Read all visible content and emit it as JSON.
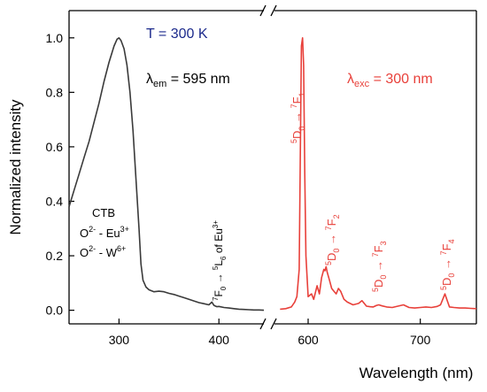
{
  "chart_data": {
    "type": "line",
    "xlabel": "Wavelength (nm)",
    "ylabel": "Normalized intensity",
    "ylim": [
      -0.05,
      1.1
    ],
    "grid": false,
    "broken_x_axis": true,
    "segments": [
      {
        "xlim": [
          250,
          445
        ],
        "ticks": [
          300,
          400
        ]
      },
      {
        "xlim": [
          570,
          750
        ],
        "ticks": [
          600,
          700
        ]
      }
    ],
    "yticks": [
      "0.0",
      "0.2",
      "0.4",
      "0.6",
      "0.8",
      "1.0"
    ],
    "xtick_labels": [
      "300",
      "400",
      "600",
      "700"
    ],
    "series": [
      {
        "role": "excitation",
        "color": "#3a3a3a",
        "segment": 0,
        "points": [
          [
            250,
            0.38
          ],
          [
            255,
            0.44
          ],
          [
            260,
            0.5
          ],
          [
            265,
            0.56
          ],
          [
            270,
            0.62
          ],
          [
            275,
            0.69
          ],
          [
            280,
            0.76
          ],
          [
            285,
            0.84
          ],
          [
            290,
            0.91
          ],
          [
            295,
            0.97
          ],
          [
            298,
            0.995
          ],
          [
            300,
            1.0
          ],
          [
            302,
            0.99
          ],
          [
            305,
            0.96
          ],
          [
            308,
            0.9
          ],
          [
            311,
            0.8
          ],
          [
            314,
            0.66
          ],
          [
            317,
            0.48
          ],
          [
            320,
            0.3
          ],
          [
            322,
            0.17
          ],
          [
            324,
            0.11
          ],
          [
            327,
            0.085
          ],
          [
            330,
            0.075
          ],
          [
            335,
            0.068
          ],
          [
            340,
            0.07
          ],
          [
            345,
            0.068
          ],
          [
            350,
            0.062
          ],
          [
            355,
            0.058
          ],
          [
            360,
            0.052
          ],
          [
            365,
            0.046
          ],
          [
            370,
            0.04
          ],
          [
            375,
            0.034
          ],
          [
            380,
            0.028
          ],
          [
            385,
            0.024
          ],
          [
            390,
            0.02
          ],
          [
            393,
            0.03
          ],
          [
            395,
            0.018
          ],
          [
            398,
            0.013
          ],
          [
            400,
            0.014
          ],
          [
            405,
            0.01
          ],
          [
            410,
            0.008
          ],
          [
            415,
            0.006
          ],
          [
            420,
            0.004
          ],
          [
            425,
            0.003
          ],
          [
            430,
            0.002
          ],
          [
            435,
            0.001
          ],
          [
            440,
            0.001
          ],
          [
            445,
            0.0
          ]
        ]
      },
      {
        "role": "emission",
        "color": "#e8403a",
        "segment": 1,
        "points": [
          [
            575,
            0.004
          ],
          [
            580,
            0.006
          ],
          [
            585,
            0.012
          ],
          [
            588,
            0.03
          ],
          [
            590,
            0.05
          ],
          [
            592,
            0.15
          ],
          [
            593,
            0.55
          ],
          [
            594,
            0.97
          ],
          [
            595,
            1.0
          ],
          [
            596,
            0.9
          ],
          [
            597,
            0.5
          ],
          [
            598,
            0.2
          ],
          [
            600,
            0.05
          ],
          [
            603,
            0.06
          ],
          [
            605,
            0.04
          ],
          [
            608,
            0.09
          ],
          [
            610,
            0.06
          ],
          [
            612,
            0.12
          ],
          [
            614,
            0.15
          ],
          [
            615,
            0.145
          ],
          [
            616,
            0.16
          ],
          [
            617,
            0.14
          ],
          [
            619,
            0.11
          ],
          [
            621,
            0.08
          ],
          [
            623,
            0.07
          ],
          [
            625,
            0.06
          ],
          [
            627,
            0.08
          ],
          [
            629,
            0.07
          ],
          [
            632,
            0.04
          ],
          [
            635,
            0.03
          ],
          [
            640,
            0.02
          ],
          [
            645,
            0.025
          ],
          [
            648,
            0.035
          ],
          [
            652,
            0.015
          ],
          [
            655,
            0.013
          ],
          [
            658,
            0.012
          ],
          [
            661,
            0.018
          ],
          [
            663,
            0.02
          ],
          [
            666,
            0.016
          ],
          [
            670,
            0.012
          ],
          [
            675,
            0.01
          ],
          [
            680,
            0.015
          ],
          [
            685,
            0.02
          ],
          [
            690,
            0.01
          ],
          [
            695,
            0.008
          ],
          [
            700,
            0.01
          ],
          [
            705,
            0.012
          ],
          [
            710,
            0.01
          ],
          [
            715,
            0.014
          ],
          [
            718,
            0.02
          ],
          [
            720,
            0.04
          ],
          [
            722,
            0.06
          ],
          [
            724,
            0.035
          ],
          [
            726,
            0.012
          ],
          [
            730,
            0.01
          ],
          [
            735,
            0.008
          ],
          [
            740,
            0.008
          ],
          [
            745,
            0.007
          ],
          [
            750,
            0.006
          ]
        ]
      }
    ],
    "annotations": {
      "temperature": "T = 300 K",
      "lambda_em": {
        "symbol": "λ",
        "sub": "em",
        "rest": " = 595 nm"
      },
      "lambda_exc": {
        "symbol": "λ",
        "sub": "exc",
        "rest": " = 300 nm"
      },
      "ctb": [
        "CTB",
        "O",
        "2-",
        " - Eu",
        "3+",
        "O",
        "2-",
        " - W",
        "6+"
      ],
      "f_l": {
        "s1": "7",
        "b1": "F",
        "sub1": "0",
        "arrow": " → ",
        "s2": "5",
        "b2": "L",
        "sub2": "6",
        "tail": " of Eu",
        "sup3": "3+"
      },
      "transitions": [
        {
          "final_sub": "1"
        },
        {
          "final_sub": "2"
        },
        {
          "final_sub": "3"
        },
        {
          "final_sub": "4"
        }
      ],
      "d_label": {
        "s1": "5",
        "b1": "D",
        "sub1": "0",
        "arrow": " → ",
        "s2": "7",
        "b2": "F"
      }
    }
  }
}
